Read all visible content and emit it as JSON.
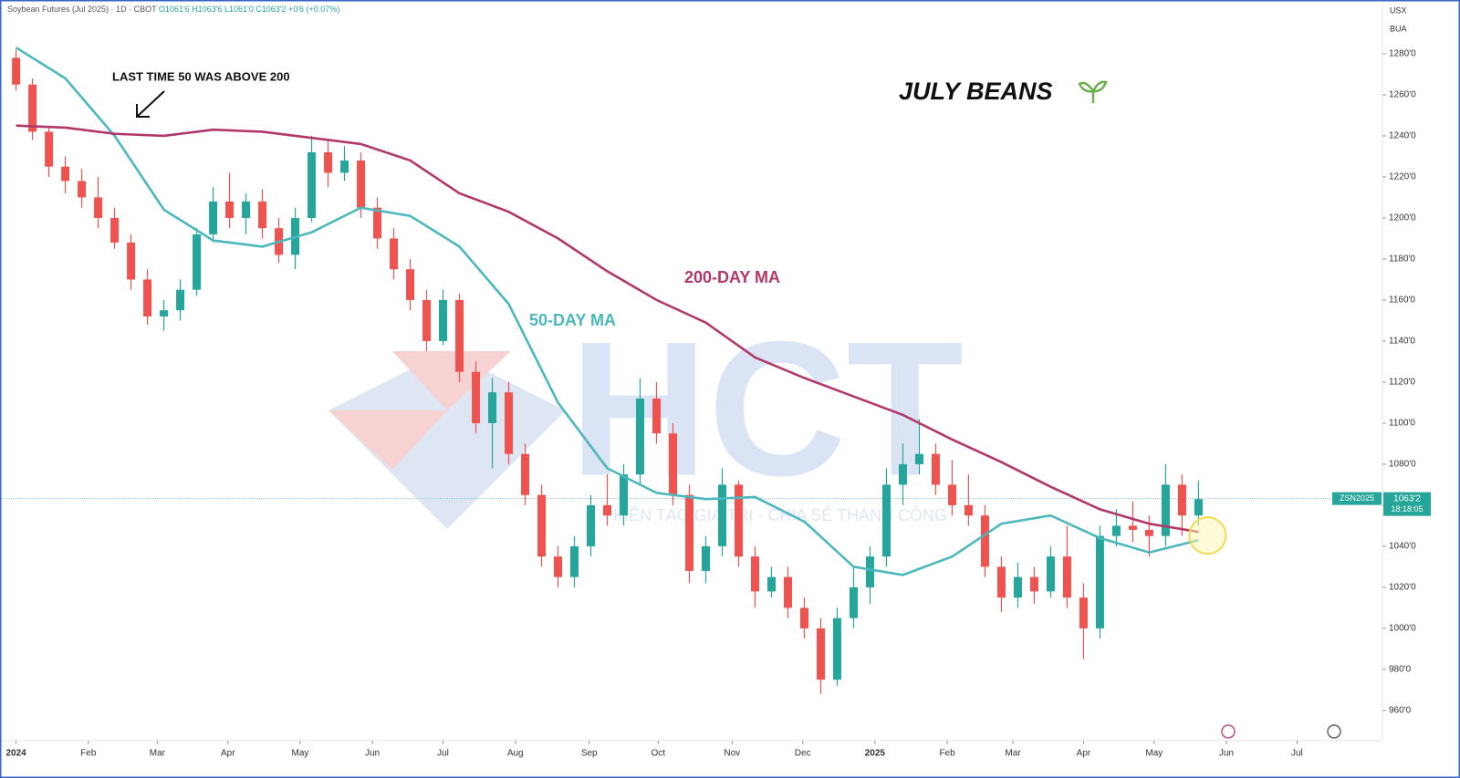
{
  "chart_data": {
    "type": "candlestick",
    "title": "Soybean Futures (Jul 2025) · 1D · CBOT",
    "header": {
      "open": "O1061'6",
      "high": "H1063'6",
      "low": "L1061'0",
      "close": "C1063'2",
      "change": "+0'6 (+0.07%)"
    },
    "currency": "USX",
    "unit": "BUA",
    "symbol": "ZSN2025",
    "countdown": "18:18:05",
    "last_price": {
      "value": 1063.25,
      "label": "1063'2"
    },
    "annotations": {
      "crossover_note": "LAST TIME 50 WAS ABOVE 200",
      "headline": "JULY BEANS"
    },
    "up_color": "#26a69a",
    "down_color": "#ef5350",
    "ohlc": {
      "x": [
        0,
        1,
        2,
        3,
        4,
        5,
        6,
        7,
        8,
        9,
        10,
        11,
        12,
        13,
        14,
        15,
        16,
        17,
        18,
        19,
        20,
        21,
        22,
        23,
        24,
        25,
        26,
        27,
        28,
        29,
        30,
        31,
        32,
        33,
        34,
        35,
        36,
        37,
        38,
        39,
        40,
        41,
        42,
        43,
        44,
        45,
        46,
        47,
        48,
        49,
        50,
        51,
        52,
        53,
        54,
        55,
        56,
        57,
        58,
        59,
        60,
        61,
        62,
        63,
        64,
        65,
        66,
        67,
        68,
        69,
        70,
        71,
        72
      ],
      "open": [
        1278,
        1265,
        1242,
        1225,
        1218,
        1210,
        1200,
        1188,
        1170,
        1152,
        1155,
        1165,
        1192,
        1208,
        1200,
        1208,
        1195,
        1182,
        1200,
        1232,
        1222,
        1228,
        1205,
        1190,
        1175,
        1160,
        1140,
        1160,
        1125,
        1100,
        1115,
        1085,
        1065,
        1035,
        1025,
        1040,
        1060,
        1055,
        1075,
        1112,
        1095,
        1065,
        1028,
        1040,
        1070,
        1035,
        1018,
        1025,
        1010,
        1000,
        975,
        1005,
        1020,
        1035,
        1070,
        1080,
        1085,
        1070,
        1060,
        1055,
        1030,
        1015,
        1025,
        1018,
        1035,
        1015,
        1000,
        1045,
        1050,
        1048,
        1045,
        1070,
        1055
      ],
      "high": [
        1282,
        1268,
        1245,
        1230,
        1224,
        1220,
        1205,
        1192,
        1175,
        1160,
        1170,
        1195,
        1215,
        1222,
        1212,
        1214,
        1200,
        1205,
        1240,
        1238,
        1235,
        1232,
        1210,
        1195,
        1180,
        1165,
        1165,
        1163,
        1130,
        1122,
        1120,
        1090,
        1070,
        1040,
        1045,
        1065,
        1075,
        1080,
        1122,
        1120,
        1100,
        1070,
        1045,
        1078,
        1072,
        1040,
        1030,
        1030,
        1015,
        1005,
        1010,
        1030,
        1040,
        1078,
        1090,
        1102,
        1090,
        1082,
        1075,
        1060,
        1035,
        1032,
        1030,
        1040,
        1050,
        1022,
        1050,
        1058,
        1062,
        1055,
        1080,
        1075,
        1072
      ],
      "low": [
        1262,
        1238,
        1220,
        1212,
        1205,
        1195,
        1185,
        1165,
        1148,
        1145,
        1150,
        1162,
        1188,
        1195,
        1192,
        1190,
        1178,
        1175,
        1198,
        1215,
        1218,
        1200,
        1185,
        1170,
        1155,
        1135,
        1138,
        1120,
        1095,
        1078,
        1080,
        1060,
        1030,
        1020,
        1020,
        1035,
        1050,
        1050,
        1070,
        1090,
        1060,
        1022,
        1022,
        1035,
        1030,
        1010,
        1015,
        1005,
        995,
        968,
        972,
        1000,
        1012,
        1030,
        1060,
        1075,
        1065,
        1055,
        1050,
        1025,
        1008,
        1010,
        1012,
        1015,
        1010,
        985,
        995,
        1040,
        1042,
        1035,
        1040,
        1045,
        1050
      ],
      "close": [
        1265,
        1242,
        1225,
        1218,
        1210,
        1200,
        1188,
        1170,
        1152,
        1155,
        1165,
        1192,
        1208,
        1200,
        1208,
        1195,
        1182,
        1200,
        1232,
        1222,
        1228,
        1205,
        1190,
        1175,
        1160,
        1140,
        1160,
        1125,
        1100,
        1115,
        1085,
        1065,
        1035,
        1025,
        1040,
        1060,
        1055,
        1075,
        1112,
        1095,
        1065,
        1028,
        1040,
        1070,
        1035,
        1018,
        1025,
        1010,
        1000,
        975,
        1005,
        1020,
        1035,
        1070,
        1080,
        1085,
        1070,
        1060,
        1055,
        1030,
        1015,
        1025,
        1018,
        1035,
        1015,
        1000,
        1045,
        1050,
        1048,
        1045,
        1070,
        1055,
        1063
      ]
    },
    "series": [
      {
        "name": "50-DAY MA",
        "color": "#4cb7bd",
        "x": [
          0,
          3,
          6,
          9,
          12,
          15,
          18,
          21,
          24,
          27,
          30,
          33,
          36,
          39,
          42,
          45,
          48,
          51,
          54,
          57,
          60,
          63,
          66,
          69,
          72
        ],
        "values": [
          1283,
          1268,
          1240,
          1204,
          1189,
          1186,
          1193,
          1205,
          1201,
          1186,
          1158,
          1110,
          1078,
          1066,
          1063,
          1064,
          1052,
          1030,
          1026,
          1035,
          1051,
          1055,
          1044,
          1037,
          1043
        ]
      },
      {
        "name": "200-DAY MA",
        "color": "#b2376b",
        "x": [
          0,
          3,
          6,
          9,
          12,
          15,
          18,
          21,
          24,
          27,
          30,
          33,
          36,
          39,
          42,
          45,
          48,
          51,
          54,
          57,
          60,
          63,
          66,
          69,
          72
        ],
        "values": [
          1245,
          1244,
          1241,
          1240,
          1243,
          1242,
          1239,
          1236,
          1228,
          1212,
          1203,
          1190,
          1174,
          1160,
          1149,
          1132,
          1122,
          1113,
          1104,
          1092,
          1081,
          1069,
          1058,
          1051,
          1047
        ]
      }
    ],
    "xlim": [
      -0.7,
      83.2
    ],
    "xticks": [
      {
        "value": 0,
        "label": "2024"
      },
      {
        "value": 4.4,
        "label": "Feb"
      },
      {
        "value": 8.6,
        "label": "Mar"
      },
      {
        "value": 12.9,
        "label": "Apr"
      },
      {
        "value": 17.3,
        "label": "May"
      },
      {
        "value": 21.7,
        "label": "Jun"
      },
      {
        "value": 26.0,
        "label": "Jul"
      },
      {
        "value": 30.4,
        "label": "Aug"
      },
      {
        "value": 34.9,
        "label": "Sep"
      },
      {
        "value": 39.1,
        "label": "Oct"
      },
      {
        "value": 43.6,
        "label": "Nov"
      },
      {
        "value": 47.9,
        "label": "Dec"
      },
      {
        "value": 52.3,
        "label": "2025"
      },
      {
        "value": 56.7,
        "label": "Feb"
      },
      {
        "value": 60.7,
        "label": "Mar"
      },
      {
        "value": 65.0,
        "label": "Apr"
      },
      {
        "value": 69.3,
        "label": "May"
      },
      {
        "value": 73.7,
        "label": "Jun"
      },
      {
        "value": 78.0,
        "label": "Jul"
      }
    ],
    "ylim": [
      945.3,
      1306.2
    ],
    "yticks": [
      {
        "value": 960,
        "label": "960'0"
      },
      {
        "value": 980,
        "label": "980'0"
      },
      {
        "value": 1000,
        "label": "1000'0"
      },
      {
        "value": 1020,
        "label": "1020'0"
      },
      {
        "value": 1040,
        "label": "1040'0"
      },
      {
        "value": 1060,
        "label": "1060'0"
      },
      {
        "value": 1080,
        "label": "1080'0"
      },
      {
        "value": 1100,
        "label": "1100'0"
      },
      {
        "value": 1120,
        "label": "1120'0"
      },
      {
        "value": 1140,
        "label": "1140'0"
      },
      {
        "value": 1160,
        "label": "1160'0"
      },
      {
        "value": 1180,
        "label": "1180'0"
      },
      {
        "value": 1200,
        "label": "1200'0"
      },
      {
        "value": 1220,
        "label": "1220'0"
      },
      {
        "value": 1240,
        "label": "1240'0"
      },
      {
        "value": 1260,
        "label": "1260'0"
      },
      {
        "value": 1280,
        "label": "1280'0"
      }
    ],
    "grid": false
  },
  "watermark": {
    "logo": "HCT",
    "slogan": "KIẾN TẠO GIÁ TRỊ - CHIA SẺ THÀNH CÔNG"
  }
}
